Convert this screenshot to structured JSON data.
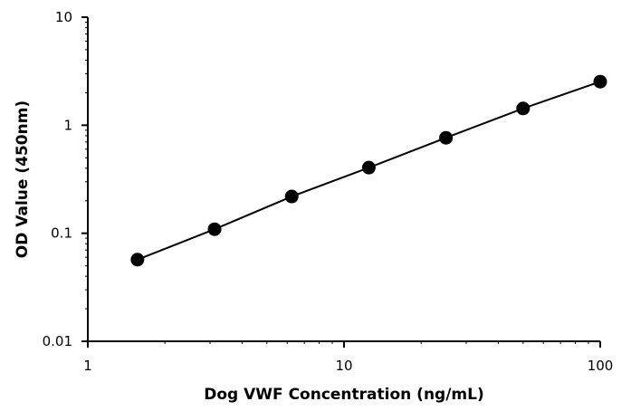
{
  "chart_data": {
    "type": "scatter",
    "title": "",
    "xlabel": "Dog VWF Concentration (ng/mL)",
    "ylabel": "OD Value (450nm)",
    "xscale": "log",
    "yscale": "log",
    "xlim": [
      1,
      100
    ],
    "ylim": [
      0.01,
      10
    ],
    "xticks": [
      "1",
      "10",
      "100"
    ],
    "yticks": [
      "0.01",
      "0.1",
      "1",
      "10"
    ],
    "grid": false,
    "legend": "none",
    "series": [
      {
        "x": [
          1.5625,
          3.125,
          6.25,
          12.5,
          25,
          50,
          100
        ],
        "y": [
          0.057,
          0.109,
          0.219,
          0.405,
          0.765,
          1.43,
          2.53
        ],
        "marker": "circle",
        "line": "fit",
        "color": "#000000"
      }
    ]
  }
}
